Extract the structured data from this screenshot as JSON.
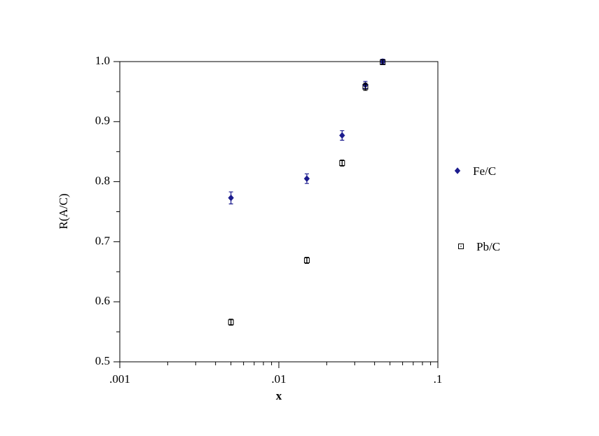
{
  "chart_data": {
    "type": "scatter",
    "x_label": "x",
    "y_label": "R(A/C)",
    "xscale": "log",
    "xlim": [
      0.001,
      0.1
    ],
    "xticks": [
      {
        "value": 0.001,
        "label": ".001"
      },
      {
        "value": 0.01,
        "label": ".01"
      },
      {
        "value": 0.1,
        "label": ".1"
      }
    ],
    "ylim": [
      0.5,
      1.0
    ],
    "yticks": [
      0.5,
      0.6,
      0.7,
      0.8,
      0.9,
      {
        "value": 1.0,
        "label": "1.0"
      }
    ],
    "legend": "right",
    "series": [
      {
        "name": "Fe/C",
        "color": "#1c1c8e",
        "marker": "diamond",
        "x": [
          0.005,
          0.015,
          0.025,
          0.035,
          0.045
        ],
        "values": [
          0.773,
          0.805,
          0.877,
          0.961,
          1.0
        ],
        "errors": [
          0.01,
          0.008,
          0.008,
          0.006,
          0.004
        ]
      },
      {
        "name": "Pb/C",
        "color": "#000000",
        "marker": "square",
        "x": [
          0.005,
          0.015,
          0.025,
          0.035,
          0.045
        ],
        "values": [
          0.566,
          0.669,
          0.831,
          0.958,
          0.999
        ],
        "errors": [
          0.005,
          0.005,
          0.005,
          0.006,
          0.004
        ]
      }
    ]
  }
}
